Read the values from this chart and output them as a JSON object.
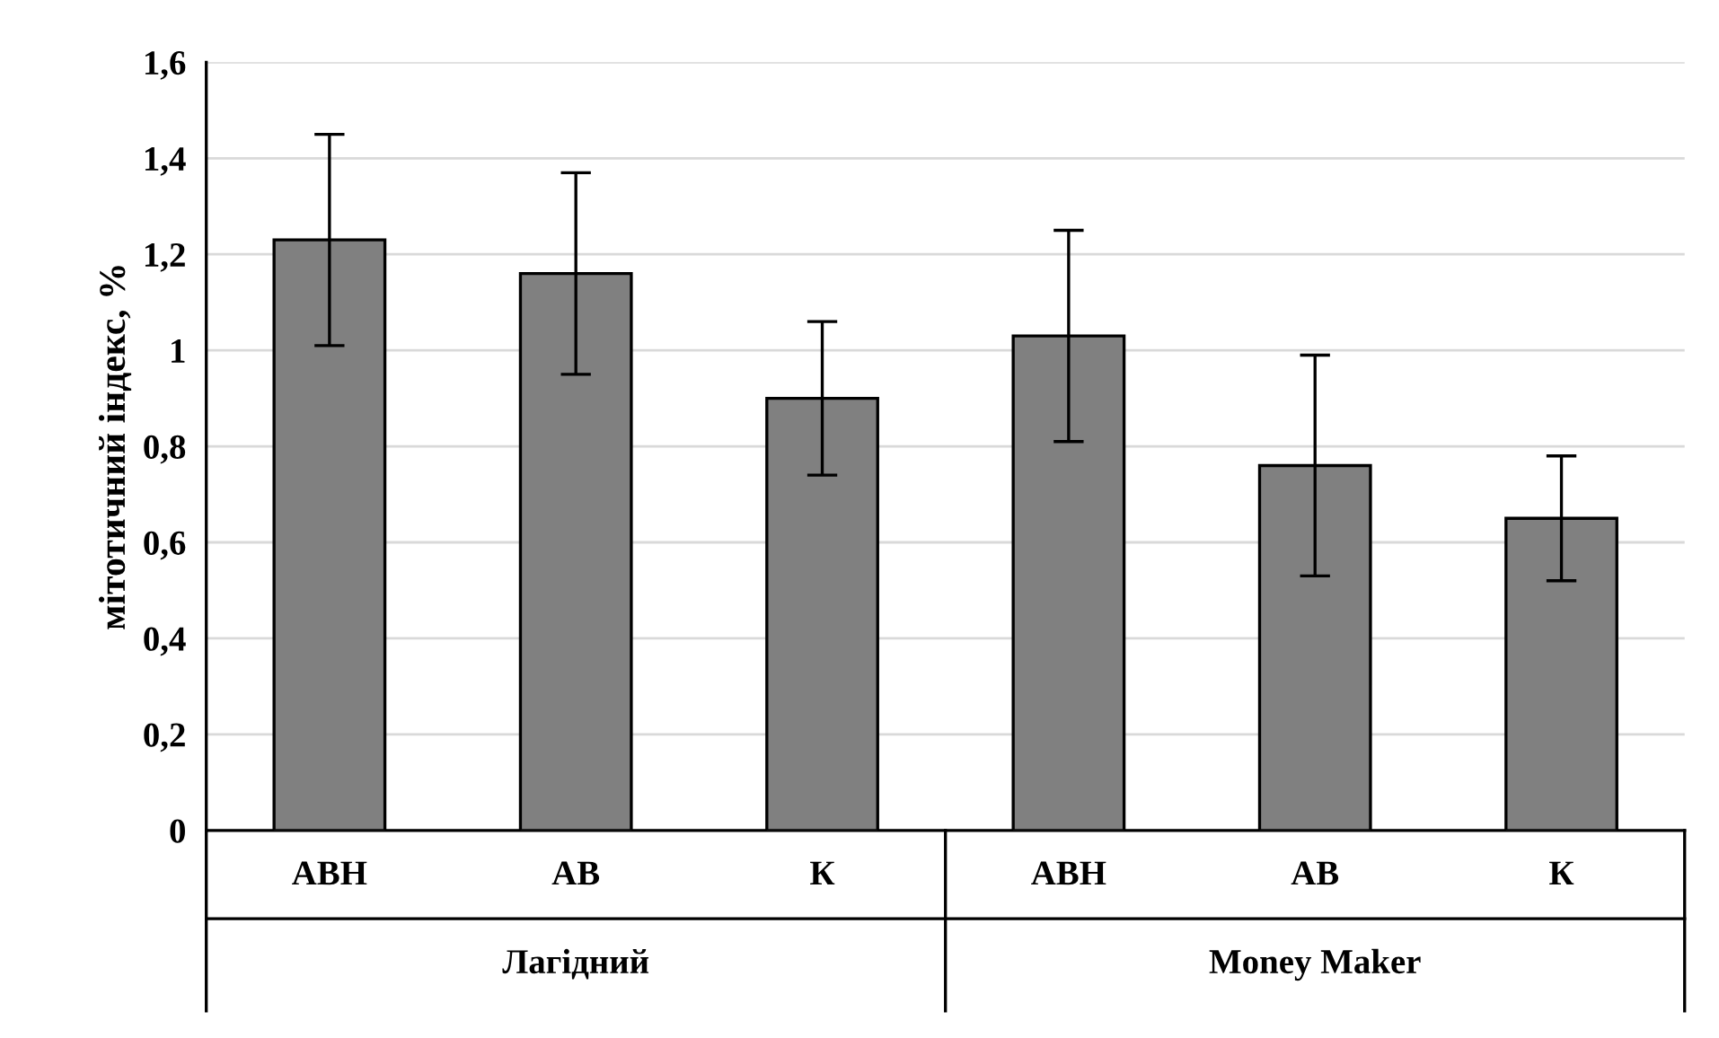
{
  "chart_data": {
    "type": "bar",
    "ylabel": "мітотичний індекс, %",
    "categories": [
      "АВН",
      "АВ",
      "К",
      "АВН",
      "АВ",
      "К"
    ],
    "values": [
      1.23,
      1.16,
      0.9,
      1.03,
      0.76,
      0.65
    ],
    "errors": [
      0.22,
      0.21,
      0.16,
      0.22,
      0.23,
      0.13
    ],
    "color": "#808080",
    "ylim": [
      0,
      1.6
    ],
    "yticks": [
      0,
      {
        "value": 0.2,
        "label": "0,2"
      },
      {
        "value": 0.4,
        "label": "0,4"
      },
      {
        "value": 0.6,
        "label": "0,6"
      },
      {
        "value": 0.8,
        "label": "0,8"
      },
      1,
      {
        "value": 1.2,
        "label": "1,2"
      },
      {
        "value": 1.4,
        "label": "1,4"
      },
      {
        "value": 1.6,
        "label": "1,6"
      }
    ],
    "grid": "y",
    "annotations": [
      "Лагідний",
      "Money Maker"
    ]
  }
}
